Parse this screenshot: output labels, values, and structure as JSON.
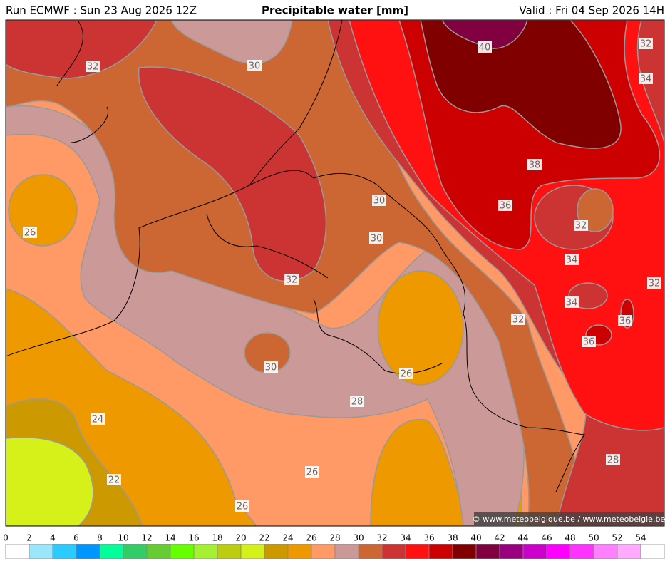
{
  "header": {
    "run": "Run ECMWF : Sun 23 Aug 2026 12Z",
    "title": "Precipitable water [mm]",
    "valid": "Valid : Fri 04 Sep 2026 14H"
  },
  "map": {
    "contour_labels": [
      32,
      30,
      40,
      32,
      34,
      38,
      30,
      36,
      32,
      30,
      34,
      26,
      32,
      32,
      34,
      32,
      36,
      36,
      30,
      26,
      28,
      24,
      28,
      26,
      22,
      26
    ],
    "credit": "© www.meteobelgique.be / www.meteobelgie.be"
  },
  "colorbar": {
    "ticks": [
      0,
      2,
      4,
      6,
      8,
      10,
      12,
      14,
      16,
      18,
      20,
      22,
      24,
      26,
      28,
      30,
      32,
      34,
      36,
      38,
      40,
      42,
      44,
      46,
      48,
      50,
      52,
      54
    ],
    "colors": [
      "#ffffff",
      "#9be6fb",
      "#2ccbff",
      "#0095ff",
      "#00ff9a",
      "#33cc66",
      "#66cc33",
      "#66ff00",
      "#a6f033",
      "#bbcc11",
      "#d6f01a",
      "#cc9900",
      "#ee9900",
      "#ff9966",
      "#cc9999",
      "#cc6633",
      "#cc3333",
      "#ff1111",
      "#cc0000",
      "#800000",
      "#800040",
      "#990080",
      "#cc00cc",
      "#ff00ff",
      "#ff33ff",
      "#ff80ff",
      "#ffaaff",
      "#ffffff"
    ]
  }
}
